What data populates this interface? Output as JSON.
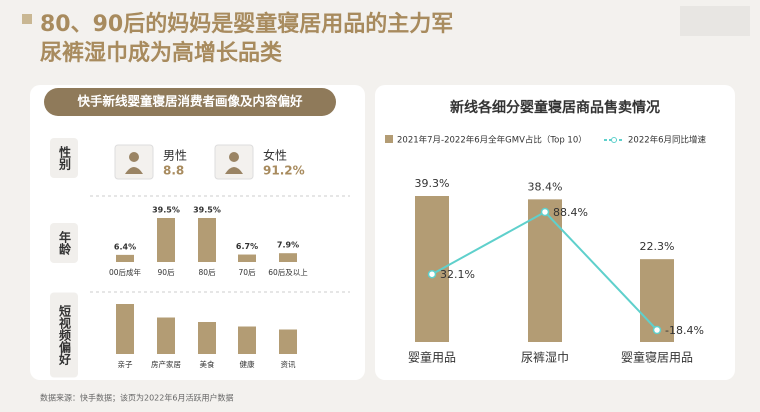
{
  "header": {
    "title_lines": [
      "80、90后的妈妈是婴童寝居用品的主力军",
      "尿裤湿巾成为高增长品类"
    ]
  },
  "left_panel": {
    "title": "快手新线婴童寝居消费者画像及内容偏好",
    "row_labels": [
      "性别",
      "年龄",
      "短视频偏好"
    ],
    "gender": [
      {
        "label": "男性",
        "value": "8.8"
      },
      {
        "label": "女性",
        "value": "91.2%"
      }
    ]
  },
  "chart_data": [
    {
      "type": "bar",
      "categories": [
        "00后成年",
        "90后",
        "80后",
        "70后",
        "60后及以上"
      ],
      "values": [
        6.4,
        39.5,
        39.5,
        6.7,
        7.9
      ],
      "value_labels": [
        "6.4%",
        "39.5%",
        "39.5%",
        "6.7%",
        "7.9%"
      ],
      "color": "#b39c74"
    },
    {
      "type": "bar",
      "categories": [
        "亲子",
        "房产家居",
        "美食",
        "健康",
        "资讯"
      ],
      "values": [
        100,
        73,
        64,
        55,
        49
      ],
      "color": "#b39c74"
    },
    {
      "type": "bar-line",
      "title": "新线各细分婴童寝居商品售卖情况",
      "categories": [
        "婴童用品",
        "尿裤湿巾",
        "婴童寝居用品"
      ],
      "series": [
        {
          "name": "2021年7月-2022年6月全年GMV占比（Top 10）",
          "type": "bar",
          "color": "#b39c74",
          "values": [
            39.3,
            38.4,
            22.3
          ],
          "value_labels": [
            "39.3%",
            "38.4%",
            "22.3%"
          ]
        },
        {
          "name": "2022年6月同比增速",
          "type": "line",
          "axis": "y2",
          "color": "#5fd0cc",
          "values": [
            32.1,
            88.4,
            -18.4
          ],
          "value_labels": [
            "32.1%",
            "88.4%",
            "-18.4%"
          ]
        }
      ]
    }
  ],
  "footer": {
    "source": "数据来源：快手数据；该页为2022年6月活跃用户数据"
  }
}
